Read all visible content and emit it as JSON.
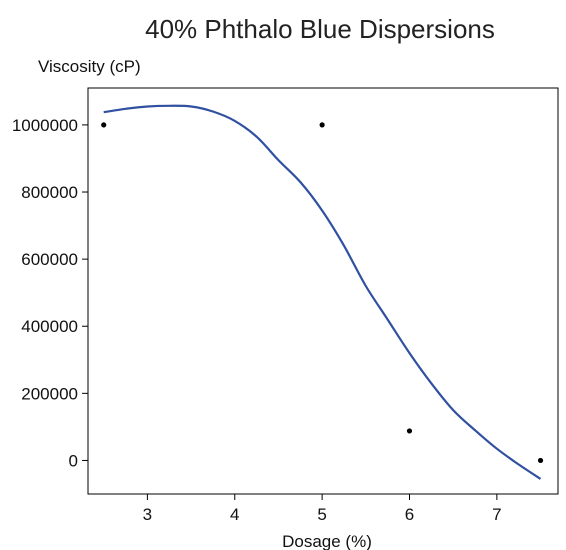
{
  "chart_data": {
    "type": "scatter",
    "title": "40% Phthalo Blue Dispersions",
    "xlabel": "Dosage (%)",
    "ylabel": "Viscosity (cP)",
    "xlim": [
      2.32,
      7.7
    ],
    "ylim": [
      -100000,
      1110000
    ],
    "x_ticks": [
      3,
      4,
      5,
      6,
      7
    ],
    "y_ticks": [
      0,
      200000,
      400000,
      600000,
      800000,
      1000000
    ],
    "grid": false,
    "points": [
      {
        "x": 2.5,
        "y": 1000000
      },
      {
        "x": 5.0,
        "y": 1000000
      },
      {
        "x": 6.0,
        "y": 88000
      },
      {
        "x": 7.5,
        "y": 0
      }
    ],
    "fit_line": {
      "x": [
        2.5,
        2.75,
        3.0,
        3.25,
        3.5,
        3.75,
        4.0,
        4.25,
        4.5,
        4.75,
        5.0,
        5.25,
        5.5,
        5.75,
        6.0,
        6.25,
        6.5,
        6.75,
        7.0,
        7.25,
        7.5
      ],
      "y": [
        1038000,
        1048000,
        1055000,
        1057000,
        1055000,
        1040000,
        1012000,
        965000,
        895000,
        830000,
        745000,
        640000,
        520000,
        420000,
        320000,
        230000,
        150000,
        90000,
        35000,
        -12000,
        -55000
      ]
    },
    "colors": {
      "line": "#3050a0",
      "points": "#000000",
      "axes": "#000000"
    }
  }
}
